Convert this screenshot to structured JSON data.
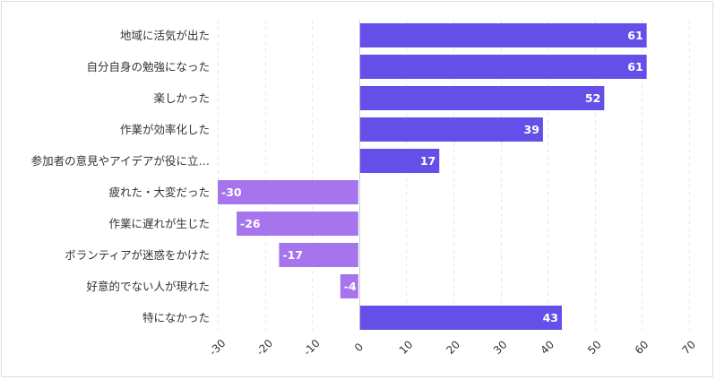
{
  "chart_data": {
    "type": "bar",
    "orientation": "horizontal",
    "title": "",
    "xlabel": "",
    "ylabel": "",
    "xlim": [
      -30,
      70
    ],
    "ticks": [
      -30,
      -20,
      -10,
      0,
      10,
      20,
      30,
      40,
      50,
      60,
      70
    ],
    "tick_labels": [
      "-30",
      "-20",
      "-10",
      "0",
      "10",
      "20",
      "30",
      "40",
      "50",
      "60",
      "70"
    ],
    "categories": [
      "地域に活気が出た",
      "自分自身の勉強になった",
      "楽しかった",
      "作業が効率化した",
      "参加者の意見やアイデアが役に立…",
      "疲れた・大変だった",
      "作業に遅れが生じた",
      "ボランティアが迷惑をかけた",
      "好意的でない人が現れた",
      "特になかった"
    ],
    "values": [
      61,
      61,
      52,
      39,
      17,
      -30,
      -26,
      -17,
      -4,
      43
    ],
    "value_labels": [
      "61",
      "61",
      "52",
      "39",
      "17",
      "-30",
      "-26",
      "-17",
      "-4",
      "43"
    ],
    "colors": {
      "positive": "#6450e8",
      "negative": "#a674ec"
    },
    "grid": true
  }
}
